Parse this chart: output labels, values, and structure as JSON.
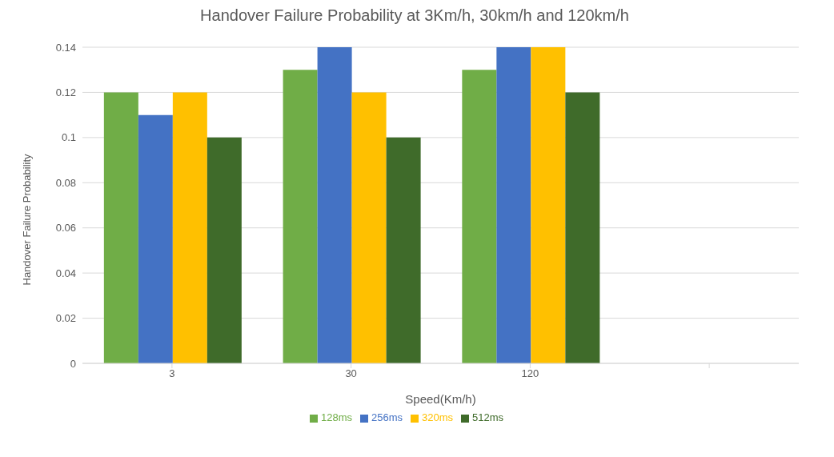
{
  "chart_data": {
    "type": "bar",
    "title": "Handover Failure Probability at 3Km/h, 30km/h and 120km/h",
    "xlabel": "Speed(Km/h)",
    "ylabel": "Handover Failure Probability",
    "categories": [
      "3",
      "30",
      "120",
      null
    ],
    "series": [
      {
        "name": "128ms",
        "color": "#70ad47",
        "values": [
          0.12,
          0.13,
          0.13,
          null
        ]
      },
      {
        "name": "256ms",
        "color": "#4472c4",
        "values": [
          0.11,
          0.14,
          0.14,
          null
        ]
      },
      {
        "name": "320ms",
        "color": "#ffc000",
        "values": [
          0.12,
          0.12,
          0.14,
          null
        ]
      },
      {
        "name": "512ms",
        "color": "#3f6b2a",
        "values": [
          0.1,
          0.1,
          0.12,
          null
        ]
      }
    ],
    "ylim": [
      0,
      0.14
    ],
    "yticks": [
      0,
      0.02,
      0.04,
      0.06,
      0.08,
      0.1,
      0.12,
      0.14
    ],
    "grid": "y",
    "legend": "bottom"
  }
}
